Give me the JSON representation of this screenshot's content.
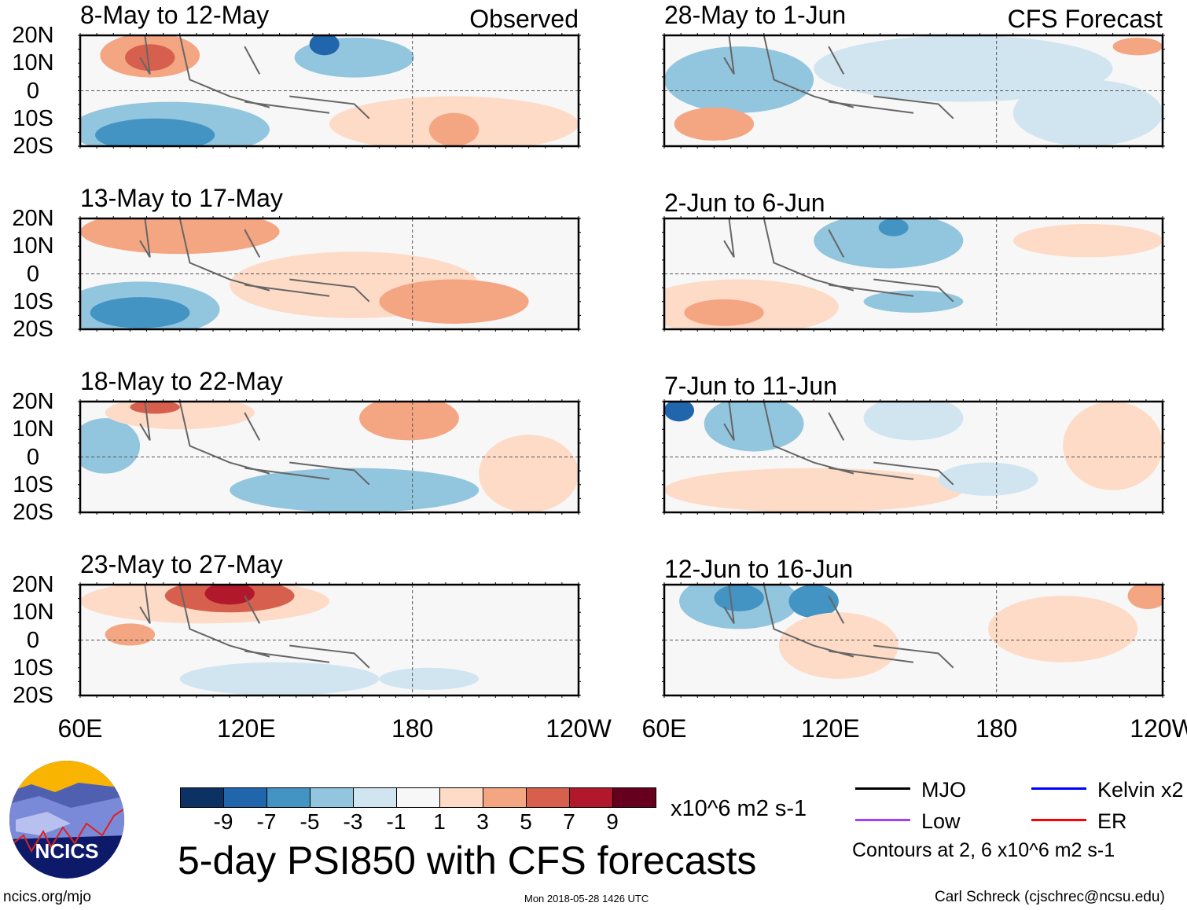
{
  "panels_left": [
    {
      "title": "8-May to 12-May",
      "label": "Observed"
    },
    {
      "title": "13-May to 17-May"
    },
    {
      "title": "18-May to 22-May"
    },
    {
      "title": "23-May to 27-May"
    }
  ],
  "panels_right": [
    {
      "title": "28-May to 1-Jun",
      "label": "CFS Forecast"
    },
    {
      "title": "2-Jun to 6-Jun"
    },
    {
      "title": "7-Jun to 11-Jun"
    },
    {
      "title": "12-Jun to 16-Jun"
    }
  ],
  "lat_labels": [
    "20N",
    "10N",
    "0",
    "10S",
    "20S"
  ],
  "lon_labels": [
    "60E",
    "120E",
    "180",
    "120W"
  ],
  "colorbar": {
    "colors": [
      "#0b3262",
      "#2166ac",
      "#4393c3",
      "#92c5de",
      "#d1e5f0",
      "#f7f7f7",
      "#fddbc7",
      "#f4a582",
      "#d6604d",
      "#b2182b",
      "#67001f"
    ],
    "ticks": [
      "-9",
      "-7",
      "-5",
      "-3",
      "-1",
      "1",
      "3",
      "5",
      "7",
      "9"
    ],
    "units": "x10^6 m2 s-1"
  },
  "title": "5-day PSI850 with CFS forecasts",
  "legend": [
    {
      "label": "MJO",
      "color": "#000000"
    },
    {
      "label": "Kelvin x2",
      "color": "#0000ff"
    },
    {
      "label": "Low",
      "color": "#a040ff"
    },
    {
      "label": "ER",
      "color": "#ff0000"
    }
  ],
  "contours_note": "Contours at 2, 6 x10^6 m2 s-1",
  "logo_text": "NCICS",
  "site": "ncics.org/mjo",
  "timestamp": "Mon 2018-05-28 1426 UTC",
  "credit": "Carl Schreck (cjschrec@ncsu.edu)"
}
